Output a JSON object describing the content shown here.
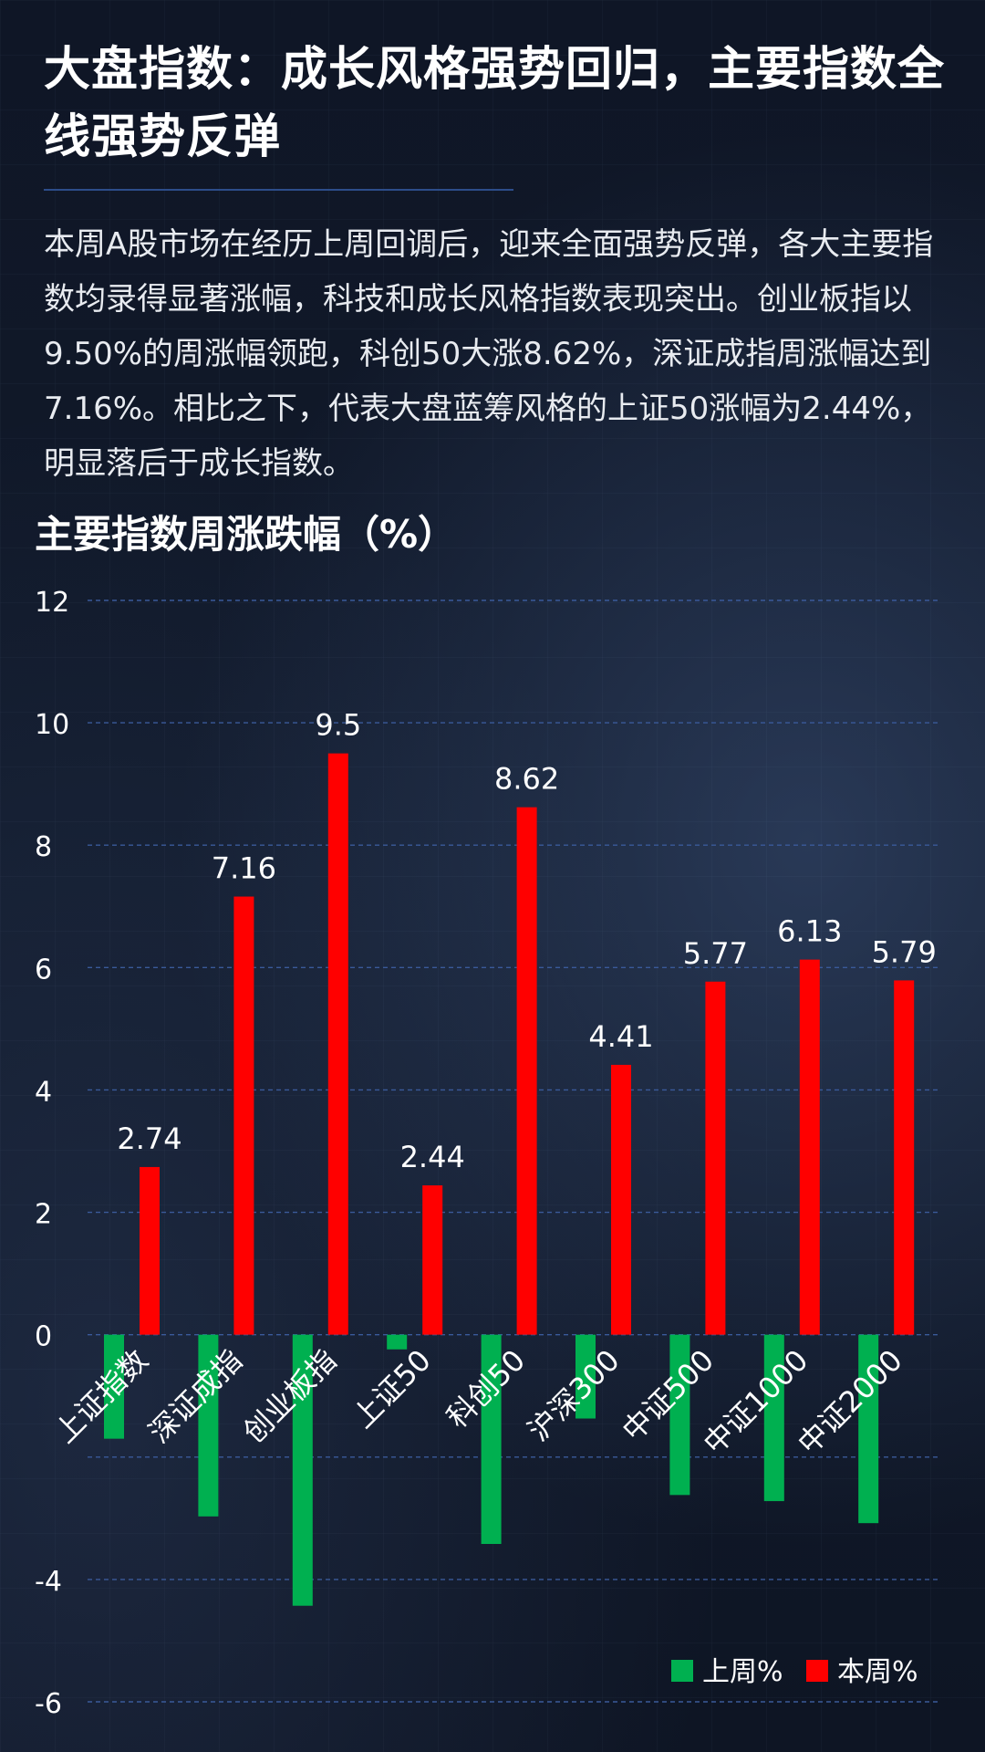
{
  "title": "大盘指数：成长风格强势回归，主要指数全线强势反弹",
  "description": "本周A股市场在经历上周回调后，迎来全面强势反弹，各大主要指数均录得显著涨幅，科技和成长风格指数表现突出。创业板指以9.50%的周涨幅领跑，科创50大涨8.62%，深证成指周涨幅达到7.16%。相比之下，代表大盘蓝筹风格的上证50涨幅为2.44%，明显落后于成长指数。",
  "colors": {
    "last_week": "#00b050",
    "this_week": "#ff0000",
    "gridline": "#3a5a9a",
    "background": "#111a2b"
  },
  "chart_data": {
    "type": "bar",
    "title": "主要指数周涨跌幅（%）",
    "categories": [
      "上证指数",
      "深证成指",
      "创业板指",
      "上证50",
      "科创50",
      "沪深300",
      "中证500",
      "中证1000",
      "中证2000"
    ],
    "series": [
      {
        "name": "上周%",
        "color": "#00b050",
        "values": [
          -1.7,
          -2.97,
          -4.43,
          -0.24,
          -3.42,
          -1.37,
          -2.62,
          -2.72,
          -3.08
        ],
        "show_labels": false
      },
      {
        "name": "本周%",
        "color": "#ff0000",
        "values": [
          2.74,
          7.16,
          9.5,
          2.44,
          8.62,
          4.41,
          5.77,
          6.13,
          5.79
        ],
        "labels": [
          "2.74",
          "7.16",
          "9.5",
          "2.44",
          "8.62",
          "4.41",
          "5.77",
          "6.13",
          "5.79"
        ],
        "show_labels": true
      }
    ],
    "ylim": [
      -6,
      12
    ],
    "yticks": [
      -6,
      -4,
      -2,
      0,
      2,
      4,
      6,
      8,
      10,
      12
    ],
    "ytick_labels": [
      "-6",
      "-4",
      "",
      "0",
      "2",
      "4",
      "6",
      "8",
      "10",
      "12"
    ],
    "grid": true,
    "legend_position": "bottom-right"
  }
}
